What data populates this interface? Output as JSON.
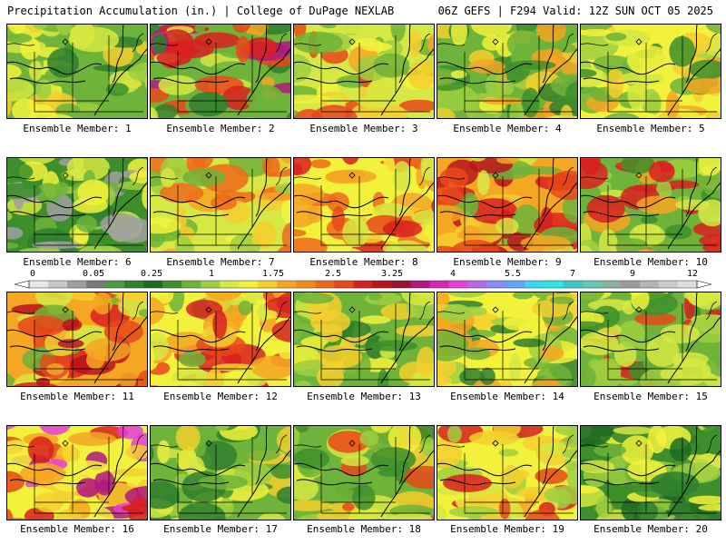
{
  "header": {
    "left": "Precipitation Accumulation (in.) | College of DuPage NEXLAB",
    "right": "06Z GEFS | F294 Valid: 12Z SUN OCT 05 2025"
  },
  "colorbar": {
    "tick_labels": [
      "0",
      "0.05",
      "0.25",
      "1",
      "1.75",
      "2.5",
      "3.25",
      "4",
      "5.5",
      "7",
      "9",
      "12"
    ],
    "colors": [
      "#e8e8e8",
      "#c8c8c8",
      "#a0a0a0",
      "#7a7a7a",
      "#4f9a3f",
      "#2f7f2f",
      "#1e6b24",
      "#3d8f2c",
      "#6fb33a",
      "#9fcf3f",
      "#d6e843",
      "#f2f23c",
      "#f5cf2e",
      "#f5a623",
      "#f28a1c",
      "#ee6a1a",
      "#e8481a",
      "#d92020",
      "#b8141c",
      "#991430",
      "#b01880",
      "#d824b0",
      "#e53ed9",
      "#b86be8",
      "#8a8aff",
      "#5aa8ff",
      "#38d8f0",
      "#2ee6e0",
      "#3cc8c0",
      "#66c8b4",
      "#8ab0a0",
      "#9a9a9a",
      "#b4b4b4",
      "#cccccc",
      "#dedede"
    ]
  },
  "members": [
    {
      "label": "Ensemble Member: 1",
      "palette": [
        "#6fb33a",
        "#9fcf3f",
        "#d6e843",
        "#f2f23c",
        "#3d8f2c",
        "#f5cf2e",
        "#2f7f2f"
      ]
    },
    {
      "label": "Ensemble Member: 2",
      "palette": [
        "#6fb33a",
        "#d6e843",
        "#f5a623",
        "#e8481a",
        "#d92020",
        "#2f7f2f",
        "#b01880"
      ]
    },
    {
      "label": "Ensemble Member: 3",
      "palette": [
        "#d6e843",
        "#f2f23c",
        "#f5cf2e",
        "#9fcf3f",
        "#6fb33a",
        "#f5a623",
        "#e8481a"
      ]
    },
    {
      "label": "Ensemble Member: 4",
      "palette": [
        "#6fb33a",
        "#9fcf3f",
        "#f2f23c",
        "#f5cf2e",
        "#f5a623",
        "#3d8f2c",
        "#2f7f2f"
      ]
    },
    {
      "label": "Ensemble Member: 5",
      "palette": [
        "#f2f23c",
        "#d6e843",
        "#f5cf2e",
        "#9fcf3f",
        "#f5a623",
        "#6fb33a",
        "#3d8f2c"
      ]
    },
    {
      "label": "Ensemble Member: 6",
      "palette": [
        "#3d8f2c",
        "#2f7f2f",
        "#6fb33a",
        "#9fcf3f",
        "#d6e843",
        "#f2f23c",
        "#a0a0a0"
      ]
    },
    {
      "label": "Ensemble Member: 7",
      "palette": [
        "#d6e843",
        "#f2f23c",
        "#f5cf2e",
        "#9fcf3f",
        "#f5a623",
        "#6fb33a",
        "#ee6a1a"
      ]
    },
    {
      "label": "Ensemble Member: 8",
      "palette": [
        "#f2f23c",
        "#f5cf2e",
        "#f5a623",
        "#ee6a1a",
        "#e8481a",
        "#d92020",
        "#d6e843"
      ]
    },
    {
      "label": "Ensemble Member: 9",
      "palette": [
        "#f5a623",
        "#e8481a",
        "#d92020",
        "#f5cf2e",
        "#d6e843",
        "#b8141c",
        "#6fb33a"
      ]
    },
    {
      "label": "Ensemble Member: 10",
      "palette": [
        "#6fb33a",
        "#9fcf3f",
        "#d6e843",
        "#f2f23c",
        "#f5a623",
        "#3d8f2c",
        "#d92020"
      ]
    },
    {
      "label": "Ensemble Member: 11",
      "palette": [
        "#f5a623",
        "#e8481a",
        "#d92020",
        "#b8141c",
        "#f5cf2e",
        "#d6e843",
        "#6fb33a"
      ]
    },
    {
      "label": "Ensemble Member: 12",
      "palette": [
        "#f2f23c",
        "#f5cf2e",
        "#f5a623",
        "#d6e843",
        "#e8481a",
        "#6fb33a",
        "#d92020"
      ]
    },
    {
      "label": "Ensemble Member: 13",
      "palette": [
        "#6fb33a",
        "#9fcf3f",
        "#3d8f2c",
        "#d6e843",
        "#f2f23c",
        "#2f7f2f",
        "#f5cf2e"
      ]
    },
    {
      "label": "Ensemble Member: 14",
      "palette": [
        "#f2f23c",
        "#f5cf2e",
        "#d6e843",
        "#9fcf3f",
        "#6fb33a",
        "#f5a623",
        "#2f7f2f"
      ]
    },
    {
      "label": "Ensemble Member: 15",
      "palette": [
        "#6fb33a",
        "#9fcf3f",
        "#d6e843",
        "#3d8f2c",
        "#f2f23c",
        "#e8481a",
        "#d92020"
      ]
    },
    {
      "label": "Ensemble Member: 16",
      "palette": [
        "#f2f23c",
        "#f5cf2e",
        "#f5a623",
        "#e8481a",
        "#d92020",
        "#b01880",
        "#e53ed9"
      ]
    },
    {
      "label": "Ensemble Member: 17",
      "palette": [
        "#6fb33a",
        "#9fcf3f",
        "#d6e843",
        "#f2f23c",
        "#3d8f2c",
        "#f5cf2e",
        "#2f7f2f"
      ]
    },
    {
      "label": "Ensemble Member: 18",
      "palette": [
        "#6fb33a",
        "#9fcf3f",
        "#d6e843",
        "#f2f23c",
        "#f5cf2e",
        "#e8481a",
        "#3d8f2c"
      ]
    },
    {
      "label": "Ensemble Member: 19",
      "palette": [
        "#f2f23c",
        "#f5cf2e",
        "#f5a623",
        "#d6e843",
        "#9fcf3f",
        "#e8481a",
        "#d92020"
      ]
    },
    {
      "label": "Ensemble Member: 20",
      "palette": [
        "#3d8f2c",
        "#6fb33a",
        "#9fcf3f",
        "#2f7f2f",
        "#d6e843",
        "#f2f23c",
        "#1e6b24"
      ]
    }
  ]
}
